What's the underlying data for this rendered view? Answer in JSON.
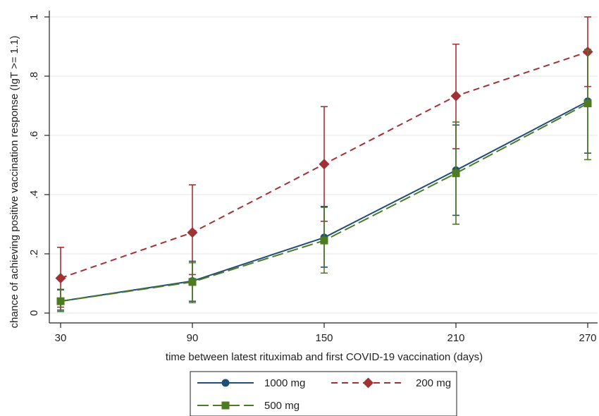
{
  "chart_data": {
    "type": "line",
    "xlabel": "time between latest rituximab and first COVID-19 vaccination (days)",
    "ylabel": "chance of achieving positive vaccination response (IgT >= 1.1)",
    "x": [
      30,
      90,
      150,
      210,
      270
    ],
    "x_tick_labels": [
      "30",
      "90",
      "150",
      "210",
      "270"
    ],
    "y_ticks": [
      0,
      0.2,
      0.4,
      0.6,
      0.8,
      1
    ],
    "y_tick_labels": [
      "0",
      ".2",
      ".4",
      ".6",
      ".8",
      "1"
    ],
    "xlim": [
      30,
      270
    ],
    "ylim": [
      0,
      1
    ],
    "grid": "horizontal",
    "legend_position": "bottom",
    "series": [
      {
        "name": "1000 mg",
        "color": "#1f4e79",
        "marker": "circle",
        "dash": "solid",
        "values": [
          0.04,
          0.108,
          0.255,
          0.482,
          0.715
        ],
        "ci_low": [
          0.01,
          0.04,
          0.155,
          0.33,
          0.54
        ],
        "ci_high": [
          0.08,
          0.175,
          0.36,
          0.635,
          0.89
        ]
      },
      {
        "name": "200 mg",
        "color": "#a03235",
        "marker": "diamond",
        "dash": "dashed",
        "values": [
          0.118,
          0.272,
          0.503,
          0.733,
          0.882
        ],
        "ci_low": [
          0.02,
          0.13,
          0.31,
          0.555,
          0.765
        ],
        "ci_high": [
          0.222,
          0.433,
          0.697,
          0.908,
          1.0
        ]
      },
      {
        "name": "500 mg",
        "color": "#4d7a22",
        "marker": "square",
        "dash": "longdash",
        "values": [
          0.04,
          0.105,
          0.245,
          0.472,
          0.708
        ],
        "ci_low": [
          0.005,
          0.035,
          0.135,
          0.3,
          0.518
        ],
        "ci_high": [
          0.078,
          0.17,
          0.357,
          0.645,
          0.887
        ]
      }
    ]
  }
}
